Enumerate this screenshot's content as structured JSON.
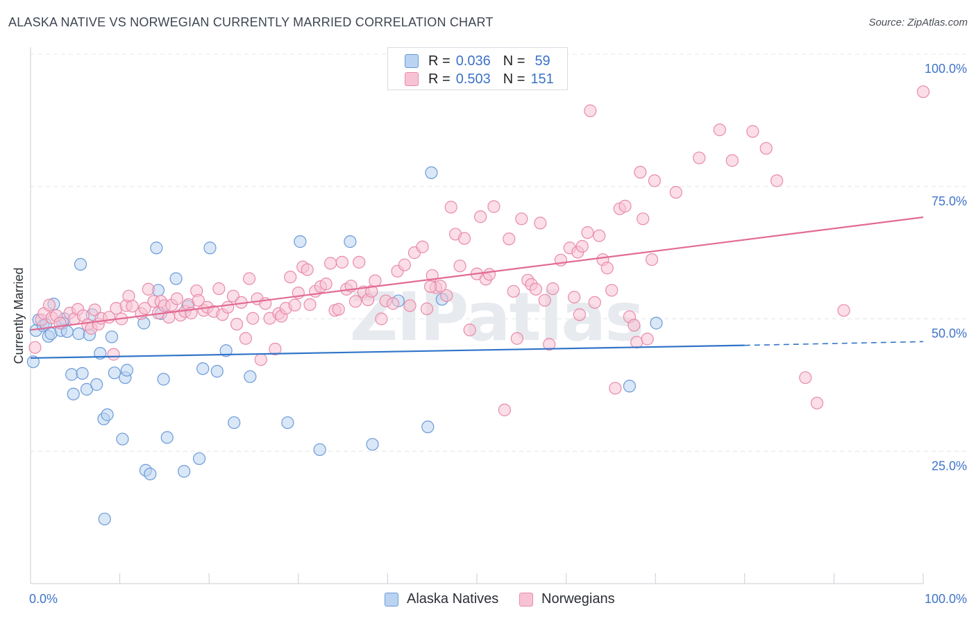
{
  "title": "ALASKA NATIVE VS NORWEGIAN CURRENTLY MARRIED CORRELATION CHART",
  "source": "Source: ZipAtlas.com",
  "watermark": "ZIPatlas",
  "legend": {
    "rows": [
      {
        "r_label": "R =",
        "r_value": "0.036",
        "n_label": "N =",
        "n_value": "59"
      },
      {
        "r_label": "R =",
        "r_value": "0.503",
        "n_label": "N =",
        "n_value": "151"
      }
    ]
  },
  "bottom_legend": [
    "Alaska Natives",
    "Norwegians"
  ],
  "colors": {
    "blue_fill": "#b9d3f1",
    "blue_stroke": "#6b9ad8",
    "blue_line": "#2f74c8",
    "pink_fill": "#f7c3d4",
    "pink_stroke": "#e88aa9",
    "pink_line": "#e26a92",
    "axis_text": "#3f74c9",
    "grid": "#e1e4e8"
  },
  "chart_data": {
    "type": "scatter",
    "title": "ALASKA NATIVE VS NORWEGIAN CURRENTLY MARRIED CORRELATION CHART",
    "xlabel": "",
    "ylabel": "Currently Married",
    "xlim": [
      0,
      100
    ],
    "ylim": [
      0,
      105
    ],
    "x_tick_labels": [
      "0.0%",
      "100.0%"
    ],
    "y_ticks": [
      25,
      50,
      75,
      100
    ],
    "y_tick_labels": [
      "25.0%",
      "50.0%",
      "75.0%",
      "100.0%"
    ],
    "grid": true,
    "series": [
      {
        "name": "Alaska Natives",
        "r": 0.036,
        "n": 59,
        "trend": {
          "x0": 0,
          "y0": 42.6,
          "x1": 80,
          "y1": 45.0,
          "dashed_to_x": 100,
          "dashed_to_y": 45.7
        },
        "points": [
          [
            0.3,
            41.9
          ],
          [
            0.6,
            47.8
          ],
          [
            0.9,
            49.8
          ],
          [
            1.4,
            48.7
          ],
          [
            1.7,
            49.0
          ],
          [
            2.0,
            46.7
          ],
          [
            2.3,
            47.2
          ],
          [
            2.6,
            52.8
          ],
          [
            3.4,
            47.8
          ],
          [
            3.6,
            49.2
          ],
          [
            3.8,
            50.0
          ],
          [
            4.1,
            47.6
          ],
          [
            4.6,
            39.5
          ],
          [
            4.8,
            35.8
          ],
          [
            5.4,
            47.2
          ],
          [
            5.6,
            60.3
          ],
          [
            5.8,
            39.7
          ],
          [
            6.3,
            36.7
          ],
          [
            6.6,
            47.0
          ],
          [
            6.9,
            50.8
          ],
          [
            7.4,
            37.6
          ],
          [
            7.8,
            43.5
          ],
          [
            8.3,
            12.2
          ],
          [
            8.2,
            31.1
          ],
          [
            8.6,
            31.9
          ],
          [
            9.1,
            46.6
          ],
          [
            9.4,
            39.8
          ],
          [
            10.3,
            27.3
          ],
          [
            10.6,
            38.9
          ],
          [
            10.8,
            40.3
          ],
          [
            12.9,
            21.4
          ],
          [
            12.7,
            49.2
          ],
          [
            13.4,
            20.7
          ],
          [
            14.1,
            63.4
          ],
          [
            14.3,
            55.4
          ],
          [
            14.6,
            51.0
          ],
          [
            14.9,
            38.6
          ],
          [
            15.3,
            27.6
          ],
          [
            16.3,
            57.6
          ],
          [
            17.2,
            21.2
          ],
          [
            17.6,
            52.4
          ],
          [
            18.9,
            23.6
          ],
          [
            19.3,
            40.6
          ],
          [
            20.1,
            63.4
          ],
          [
            20.9,
            40.1
          ],
          [
            21.9,
            44.0
          ],
          [
            22.8,
            30.4
          ],
          [
            24.6,
            39.1
          ],
          [
            28.8,
            30.4
          ],
          [
            30.2,
            64.6
          ],
          [
            32.4,
            25.3
          ],
          [
            35.8,
            64.6
          ],
          [
            38.3,
            26.3
          ],
          [
            41.2,
            53.4
          ],
          [
            44.5,
            29.6
          ],
          [
            44.9,
            77.6
          ],
          [
            46.1,
            53.7
          ],
          [
            70.1,
            49.2
          ],
          [
            67.1,
            37.3
          ]
        ]
      },
      {
        "name": "Norwegians",
        "r": 0.503,
        "n": 151,
        "trend": {
          "x0": 0,
          "y0": 47.9,
          "x1": 100,
          "y1": 69.2
        },
        "points": [
          [
            0.5,
            44.6
          ],
          [
            1.2,
            49.8
          ],
          [
            1.5,
            51.0
          ],
          [
            2.1,
            52.6
          ],
          [
            2.4,
            50.2
          ],
          [
            2.9,
            50.6
          ],
          [
            3.3,
            49.2
          ],
          [
            4.4,
            51.1
          ],
          [
            4.9,
            50.0
          ],
          [
            5.3,
            51.8
          ],
          [
            5.9,
            50.6
          ],
          [
            6.4,
            48.9
          ],
          [
            6.8,
            48.2
          ],
          [
            7.2,
            51.7
          ],
          [
            7.6,
            49.0
          ],
          [
            7.9,
            50.1
          ],
          [
            8.8,
            50.3
          ],
          [
            9.3,
            43.3
          ],
          [
            9.6,
            52.0
          ],
          [
            10.2,
            50.0
          ],
          [
            10.7,
            52.5
          ],
          [
            11.0,
            54.3
          ],
          [
            11.4,
            52.4
          ],
          [
            12.4,
            51.0
          ],
          [
            12.8,
            52.0
          ],
          [
            13.2,
            55.6
          ],
          [
            13.8,
            53.3
          ],
          [
            14.3,
            51.1
          ],
          [
            14.6,
            53.3
          ],
          [
            15.0,
            52.5
          ],
          [
            15.5,
            50.3
          ],
          [
            15.8,
            52.6
          ],
          [
            16.4,
            53.8
          ],
          [
            16.8,
            50.7
          ],
          [
            17.3,
            51.4
          ],
          [
            17.7,
            52.7
          ],
          [
            18.0,
            51.1
          ],
          [
            18.6,
            55.3
          ],
          [
            18.8,
            53.5
          ],
          [
            19.4,
            51.6
          ],
          [
            19.8,
            52.2
          ],
          [
            20.5,
            51.4
          ],
          [
            21.1,
            55.7
          ],
          [
            21.5,
            50.8
          ],
          [
            22.1,
            52.2
          ],
          [
            22.7,
            54.3
          ],
          [
            23.1,
            49.0
          ],
          [
            23.6,
            53.1
          ],
          [
            24.1,
            46.3
          ],
          [
            24.5,
            57.6
          ],
          [
            24.9,
            50.1
          ],
          [
            25.4,
            53.8
          ],
          [
            25.8,
            42.3
          ],
          [
            26.3,
            52.9
          ],
          [
            26.8,
            50.1
          ],
          [
            27.4,
            44.3
          ],
          [
            27.8,
            51.0
          ],
          [
            28.1,
            50.5
          ],
          [
            28.6,
            52.0
          ],
          [
            29.1,
            57.9
          ],
          [
            29.6,
            52.6
          ],
          [
            30.0,
            54.9
          ],
          [
            30.5,
            59.8
          ],
          [
            31.0,
            59.3
          ],
          [
            31.3,
            52.7
          ],
          [
            31.9,
            55.2
          ],
          [
            32.5,
            56.1
          ],
          [
            33.1,
            56.6
          ],
          [
            33.6,
            60.5
          ],
          [
            34.1,
            51.6
          ],
          [
            34.5,
            51.8
          ],
          [
            34.9,
            60.7
          ],
          [
            35.4,
            55.6
          ],
          [
            35.9,
            56.2
          ],
          [
            36.4,
            53.3
          ],
          [
            36.8,
            60.7
          ],
          [
            37.3,
            55.1
          ],
          [
            37.8,
            53.6
          ],
          [
            38.2,
            55.2
          ],
          [
            38.6,
            57.2
          ],
          [
            39.3,
            50.0
          ],
          [
            39.8,
            53.4
          ],
          [
            40.6,
            52.9
          ],
          [
            41.1,
            59.0
          ],
          [
            41.9,
            60.2
          ],
          [
            42.5,
            52.5
          ],
          [
            43.0,
            62.5
          ],
          [
            43.9,
            63.6
          ],
          [
            44.4,
            51.9
          ],
          [
            45.0,
            58.2
          ],
          [
            45.4,
            55.9
          ],
          [
            45.9,
            56.2
          ],
          [
            46.6,
            54.4
          ],
          [
            47.1,
            71.1
          ],
          [
            47.6,
            66.0
          ],
          [
            48.1,
            60.0
          ],
          [
            48.6,
            65.2
          ],
          [
            49.2,
            47.9
          ],
          [
            50.0,
            58.5
          ],
          [
            50.4,
            69.3
          ],
          [
            51.0,
            57.5
          ],
          [
            51.4,
            58.4
          ],
          [
            51.9,
            71.2
          ],
          [
            53.1,
            32.8
          ],
          [
            53.6,
            65.1
          ],
          [
            54.1,
            55.2
          ],
          [
            54.5,
            46.3
          ],
          [
            55.0,
            68.9
          ],
          [
            55.7,
            57.3
          ],
          [
            56.1,
            56.5
          ],
          [
            56.6,
            55.6
          ],
          [
            57.1,
            68.1
          ],
          [
            57.6,
            53.5
          ],
          [
            58.1,
            45.2
          ],
          [
            58.5,
            55.7
          ],
          [
            59.4,
            61.1
          ],
          [
            60.4,
            63.4
          ],
          [
            60.9,
            54.1
          ],
          [
            61.3,
            62.6
          ],
          [
            61.8,
            63.7
          ],
          [
            62.4,
            66.3
          ],
          [
            62.7,
            89.3
          ],
          [
            63.2,
            53.1
          ],
          [
            63.7,
            65.7
          ],
          [
            64.1,
            61.2
          ],
          [
            64.6,
            59.6
          ],
          [
            65.1,
            55.4
          ],
          [
            65.5,
            36.9
          ],
          [
            66.0,
            70.8
          ],
          [
            66.6,
            71.3
          ],
          [
            67.1,
            50.4
          ],
          [
            67.6,
            48.8
          ],
          [
            67.9,
            45.6
          ],
          [
            68.3,
            77.7
          ],
          [
            68.6,
            68.9
          ],
          [
            69.1,
            46.2
          ],
          [
            69.6,
            61.2
          ],
          [
            69.9,
            76.1
          ],
          [
            72.3,
            73.9
          ],
          [
            74.9,
            80.4
          ],
          [
            77.2,
            85.7
          ],
          [
            78.6,
            79.9
          ],
          [
            80.9,
            85.4
          ],
          [
            82.4,
            82.2
          ],
          [
            83.6,
            76.1
          ],
          [
            86.8,
            38.9
          ],
          [
            88.1,
            34.1
          ],
          [
            91.1,
            51.6
          ],
          [
            100.0,
            92.9
          ],
          [
            61.5,
            50.8
          ],
          [
            44.8,
            56.1
          ]
        ]
      }
    ]
  }
}
